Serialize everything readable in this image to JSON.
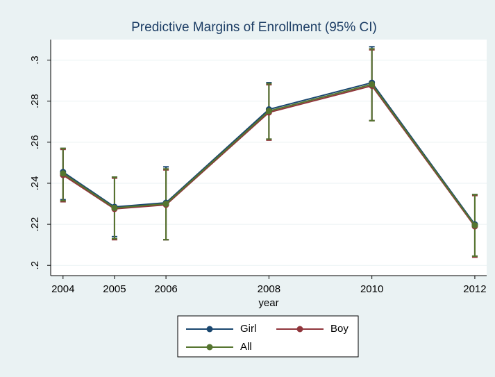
{
  "chart_data": {
    "type": "line",
    "title": "Predictive Margins of Enrollment (95% CI)",
    "x_label": "year",
    "x": [
      2004,
      2005,
      2006,
      2008,
      2010,
      2012
    ],
    "series": [
      {
        "name": "Girl",
        "color": "#1a476f",
        "values": [
          0.2455,
          0.2285,
          0.2305,
          0.276,
          0.289,
          0.22
        ],
        "lower": [
          0.232,
          0.214,
          0.2125,
          0.2615,
          0.2705,
          0.2045
        ],
        "upper": [
          0.257,
          0.243,
          0.248,
          0.289,
          0.3065,
          0.2345
        ]
      },
      {
        "name": "Boy",
        "color": "#90353b",
        "values": [
          0.244,
          0.2275,
          0.2295,
          0.2745,
          0.2875,
          0.219
        ],
        "lower": [
          0.231,
          0.2125,
          0.2125,
          0.261,
          0.2705,
          0.204
        ],
        "upper": [
          0.2565,
          0.2425,
          0.2465,
          0.288,
          0.305,
          0.234
        ]
      },
      {
        "name": "All",
        "color": "#55752f",
        "values": [
          0.2448,
          0.228,
          0.23,
          0.2752,
          0.2882,
          0.2195
        ],
        "lower": [
          0.2315,
          0.213,
          0.2125,
          0.2615,
          0.2705,
          0.2045
        ],
        "upper": [
          0.257,
          0.243,
          0.247,
          0.2885,
          0.3055,
          0.2345
        ]
      }
    ],
    "xlim": [
      2003.76,
      2012.23
    ],
    "xticks": [
      2004,
      2005,
      2006,
      2008,
      2010,
      2012
    ],
    "ylim": [
      0.195,
      0.31
    ],
    "yticks": [
      {
        "value": 0.2,
        "label": ".2"
      },
      {
        "value": 0.22,
        "label": ".22"
      },
      {
        "value": 0.24,
        "label": ".24"
      },
      {
        "value": 0.26,
        "label": ".26"
      },
      {
        "value": 0.28,
        "label": ".28"
      },
      {
        "value": 0.3,
        "label": ".3"
      }
    ],
    "grid": true,
    "legend_position": "bottom"
  }
}
